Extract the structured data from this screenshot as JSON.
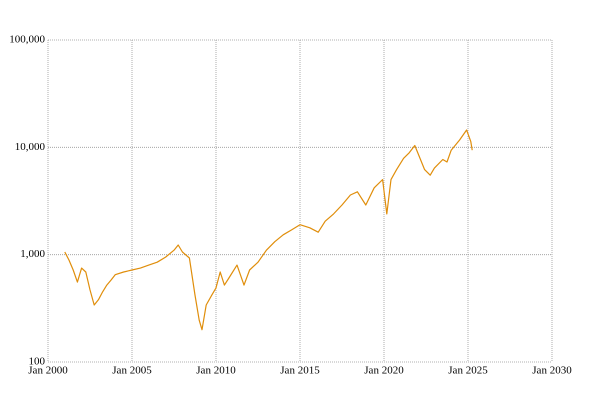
{
  "chart_data": {
    "type": "line",
    "log_y": true,
    "grid": true,
    "xlim": [
      "2000-01",
      "2030-01"
    ],
    "xticks": [
      {
        "value": "2000-01",
        "label": "Jan 2000"
      },
      {
        "value": "2005-01",
        "label": "Jan 2005"
      },
      {
        "value": "2010-01",
        "label": "Jan 2010"
      },
      {
        "value": "2015-01",
        "label": "Jan 2015"
      },
      {
        "value": "2020-01",
        "label": "Jan 2020"
      },
      {
        "value": "2025-01",
        "label": "Jan 2025"
      },
      {
        "value": "2030-01",
        "label": "Jan 2030"
      }
    ],
    "ylim": [
      100,
      100000
    ],
    "yticks": [
      100,
      {
        "value": 1000,
        "label": "1,000"
      },
      {
        "value": 10000,
        "label": "10,000"
      },
      {
        "value": 100000,
        "label": "100,000"
      }
    ],
    "x": [
      "2001-01",
      "2001-04",
      "2001-07",
      "2001-10",
      "2002-01",
      "2002-04",
      "2002-07",
      "2002-10",
      "2003-01",
      "2003-04",
      "2003-07",
      "2003-10",
      "2004-01",
      "2004-07",
      "2005-01",
      "2005-07",
      "2006-01",
      "2006-07",
      "2007-01",
      "2007-07",
      "2007-10",
      "2008-01",
      "2008-06",
      "2008-10",
      "2009-01",
      "2009-03",
      "2009-06",
      "2009-10",
      "2010-01",
      "2010-04",
      "2010-07",
      "2010-10",
      "2011-04",
      "2011-09",
      "2012-01",
      "2012-07",
      "2013-01",
      "2013-07",
      "2014-01",
      "2014-07",
      "2015-01",
      "2015-08",
      "2016-02",
      "2016-07",
      "2017-01",
      "2017-07",
      "2018-01",
      "2018-06",
      "2018-12",
      "2019-06",
      "2019-12",
      "2020-03",
      "2020-06",
      "2020-10",
      "2021-03",
      "2021-07",
      "2021-11",
      "2022-06",
      "2022-10",
      "2023-01",
      "2023-07",
      "2023-10",
      "2024-01",
      "2024-07",
      "2024-12",
      "2025-03",
      "2025-04"
    ],
    "series": [
      {
        "color": "#e08e0b",
        "values": [
          1060,
          890,
          720,
          555,
          750,
          690,
          470,
          340,
          380,
          450,
          520,
          580,
          650,
          690,
          720,
          750,
          800,
          850,
          950,
          1100,
          1230,
          1060,
          930,
          420,
          245,
          200,
          340,
          420,
          490,
          690,
          520,
          600,
          800,
          520,
          720,
          850,
          1100,
          1320,
          1530,
          1700,
          1900,
          1780,
          1620,
          2050,
          2400,
          2900,
          3600,
          3850,
          2900,
          4200,
          5000,
          2400,
          5000,
          6200,
          7900,
          8900,
          10400,
          6200,
          5500,
          6400,
          7700,
          7300,
          9400,
          11700,
          14500,
          11300,
          9400
        ]
      }
    ]
  }
}
